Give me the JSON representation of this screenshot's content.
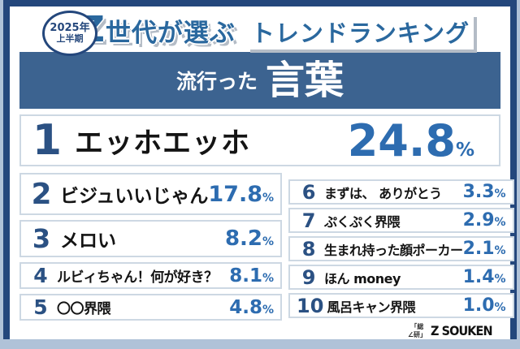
{
  "badge": {
    "line1": "2025年",
    "line2": "上半期"
  },
  "title": {
    "z": "Z",
    "rest": "世代が選ぶ",
    "highlight": "トレンドランキング"
  },
  "banner": {
    "prefix": "流行った",
    "subject": "言葉"
  },
  "ranking": [
    {
      "rank": "1",
      "label": "エッホエッホ",
      "value": "24.8",
      "unit": "%"
    },
    {
      "rank": "2",
      "label": "ビジュいいじゃん",
      "value": "17.8",
      "unit": "%"
    },
    {
      "rank": "3",
      "label": "メロい",
      "value": "8.2",
      "unit": "%"
    },
    {
      "rank": "4",
      "label": "ルビィちゃん！何が好き？",
      "value": "8.1",
      "unit": "%"
    },
    {
      "rank": "5",
      "label": "〇〇界隈",
      "value": "4.8",
      "unit": "%"
    },
    {
      "rank": "6",
      "label": "まずは、 ありがとう",
      "value": "3.3",
      "unit": "%"
    },
    {
      "rank": "7",
      "label": "ぷくぷく界隈",
      "value": "2.9",
      "unit": "%"
    },
    {
      "rank": "8",
      "label": "生まれ持った顔ポーカー",
      "value": "2.1",
      "unit": "%"
    },
    {
      "rank": "9",
      "label": "ほん money",
      "value": "1.4",
      "unit": "%"
    },
    {
      "rank": "10",
      "label": "風呂キャン界隈",
      "value": "1.0",
      "unit": "%"
    }
  ],
  "footer": {
    "logo_mark": "「総\n∠研」",
    "logo_text": "Z SOUKEN"
  },
  "colors": {
    "background": "#b0c2d8",
    "card_border_navy": "#24477c",
    "banner_blue": "#3c6390",
    "title_blue": "#2a689e",
    "rank_number_blue": "#2b5183",
    "percent_blue": "#2d6cb0",
    "row_border": "#cdd8e3",
    "shadow_gray": "#b4bcc6"
  },
  "chart_data": {
    "type": "table",
    "title": "Z世代が選ぶ トレンドランキング 2025年上半期 流行った言葉",
    "categories": [
      "エッホエッホ",
      "ビジュいいじゃん",
      "メロい",
      "ルビィちゃん！何が好き？",
      "〇〇界隈",
      "まずは、 ありがとう",
      "ぷくぷく界隈",
      "生まれ持った顔ポーカー",
      "ほん money",
      "風呂キャン界隈"
    ],
    "values": [
      24.8,
      17.8,
      8.2,
      8.1,
      4.8,
      3.3,
      2.9,
      2.1,
      1.4,
      1.0
    ],
    "unit": "%",
    "legend_position": "none",
    "grid": false
  }
}
